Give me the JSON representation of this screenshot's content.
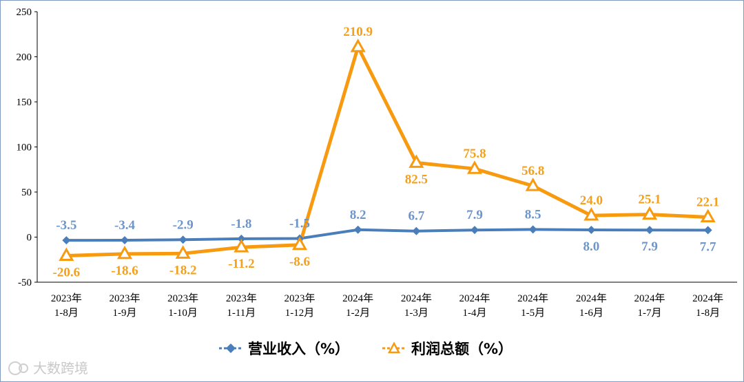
{
  "chart_data": {
    "type": "line",
    "categories": [
      [
        "2023年",
        "1-8月"
      ],
      [
        "2023年",
        "1-9月"
      ],
      [
        "2023年",
        "1-10月"
      ],
      [
        "2023年",
        "1-11月"
      ],
      [
        "2023年",
        "1-12月"
      ],
      [
        "2024年",
        "1-2月"
      ],
      [
        "2024年",
        "1-3月"
      ],
      [
        "2024年",
        "1-4月"
      ],
      [
        "2024年",
        "1-5月"
      ],
      [
        "2024年",
        "1-6月"
      ],
      [
        "2024年",
        "1-7月"
      ],
      [
        "2024年",
        "1-8月"
      ]
    ],
    "series": [
      {
        "name": "营业收入（%）",
        "values": [
          -3.5,
          -3.4,
          -2.9,
          -1.8,
          -1.5,
          8.2,
          6.7,
          7.9,
          8.5,
          8.0,
          7.9,
          7.7
        ],
        "labels": [
          "-3.5",
          "-3.4",
          "-2.9",
          "-1.8",
          "-1.5",
          "8.2",
          "6.7",
          "7.9",
          "8.5",
          "8.0",
          "7.9",
          "7.7"
        ],
        "label_position": [
          "above",
          "above",
          "above",
          "above",
          "above",
          "above",
          "above",
          "above",
          "above",
          "below",
          "below",
          "below"
        ],
        "color": "#4a7ebb",
        "marker": "diamond"
      },
      {
        "name": "利润总额（%）",
        "values": [
          -20.6,
          -18.6,
          -18.2,
          -11.2,
          -8.6,
          210.9,
          82.5,
          75.8,
          56.8,
          24.0,
          25.1,
          22.1
        ],
        "labels": [
          "-20.6",
          "-18.6",
          "-18.2",
          "-11.2",
          "-8.6",
          "210.9",
          "82.5",
          "75.8",
          "56.8",
          "24.0",
          "25.1",
          "22.1"
        ],
        "label_position": [
          "below",
          "below",
          "below",
          "below",
          "below",
          "above",
          "below",
          "above",
          "above",
          "above",
          "above",
          "above"
        ],
        "color": "#f79a10",
        "marker": "triangle"
      }
    ],
    "yticks": [
      -50,
      0,
      50,
      100,
      150,
      200,
      250
    ],
    "ylim": [
      -50,
      250
    ],
    "grid": false,
    "legend_position": "bottom"
  },
  "watermark": "大数跨境"
}
